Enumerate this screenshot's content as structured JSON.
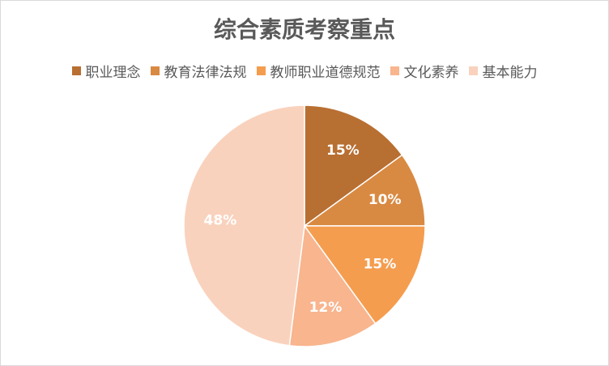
{
  "chart_data": {
    "type": "pie",
    "title": "综合素质考察重点",
    "legend_position": "top",
    "categories": [
      "职业理念",
      "教育法律法规",
      "教师职业道德规范",
      "文化素养",
      "基本能力"
    ],
    "values": [
      15,
      10,
      15,
      12,
      48
    ],
    "value_labels": [
      "15%",
      "10%",
      "15%",
      "12%",
      "48%"
    ],
    "colors": [
      "#b86f32",
      "#d98a42",
      "#f59d4f",
      "#f8b58e",
      "#f9d2bd"
    ]
  }
}
